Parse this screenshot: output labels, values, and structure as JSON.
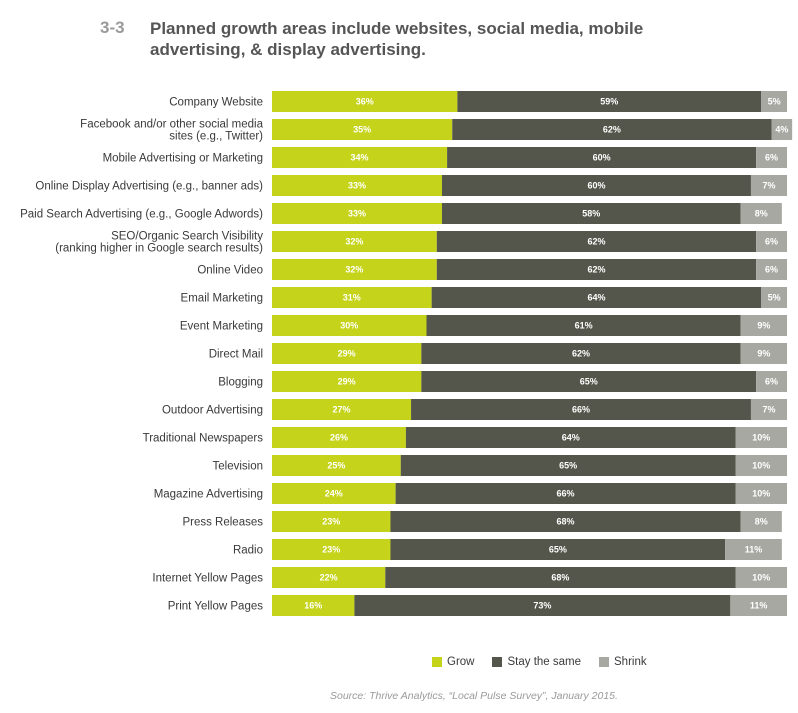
{
  "figure_number": "3-3",
  "source": "Source: Thrive Analytics, “Local Pulse Survey”, January 2015.",
  "colors": {
    "grow": "#c5d41a",
    "stay": "#55564b",
    "shrink": "#a8a8a3"
  },
  "chart_data": {
    "type": "bar",
    "orientation": "horizontal",
    "stacked": true,
    "title": "Planned growth areas include websites, social media, mobile advertising, & display advertising.",
    "xlabel": "",
    "ylabel": "",
    "xlim": [
      0,
      100
    ],
    "value_suffix": "%",
    "legend_position": "bottom-right",
    "categories": [
      [
        "Company Website"
      ],
      [
        "Facebook and/or other social media",
        "sites (e.g., Twitter)"
      ],
      [
        "Mobile Advertising or Marketing"
      ],
      [
        "Online Display Advertising (e.g., banner ads)"
      ],
      [
        "Paid Search Advertising (e.g., Google Adwords)"
      ],
      [
        "SEO/Organic Search Visibility",
        "(ranking higher in Google search results)"
      ],
      [
        "Online Video"
      ],
      [
        "Email Marketing"
      ],
      [
        "Event Marketing"
      ],
      [
        "Direct Mail"
      ],
      [
        "Blogging"
      ],
      [
        "Outdoor Advertising"
      ],
      [
        "Traditional Newspapers"
      ],
      [
        "Television"
      ],
      [
        "Magazine Advertising"
      ],
      [
        "Press Releases"
      ],
      [
        "Radio"
      ],
      [
        "Internet Yellow Pages"
      ],
      [
        "Print Yellow Pages"
      ]
    ],
    "series": [
      {
        "name": "Grow",
        "values": [
          36,
          35,
          34,
          33,
          33,
          32,
          32,
          31,
          30,
          29,
          29,
          27,
          26,
          25,
          24,
          23,
          23,
          22,
          16
        ]
      },
      {
        "name": "Stay the same",
        "values": [
          59,
          62,
          60,
          60,
          58,
          62,
          62,
          64,
          61,
          62,
          65,
          66,
          64,
          65,
          66,
          68,
          65,
          68,
          73
        ]
      },
      {
        "name": "Shrink",
        "values": [
          5,
          4,
          6,
          7,
          8,
          6,
          6,
          5,
          9,
          9,
          6,
          7,
          10,
          10,
          10,
          8,
          11,
          10,
          11
        ]
      }
    ]
  }
}
